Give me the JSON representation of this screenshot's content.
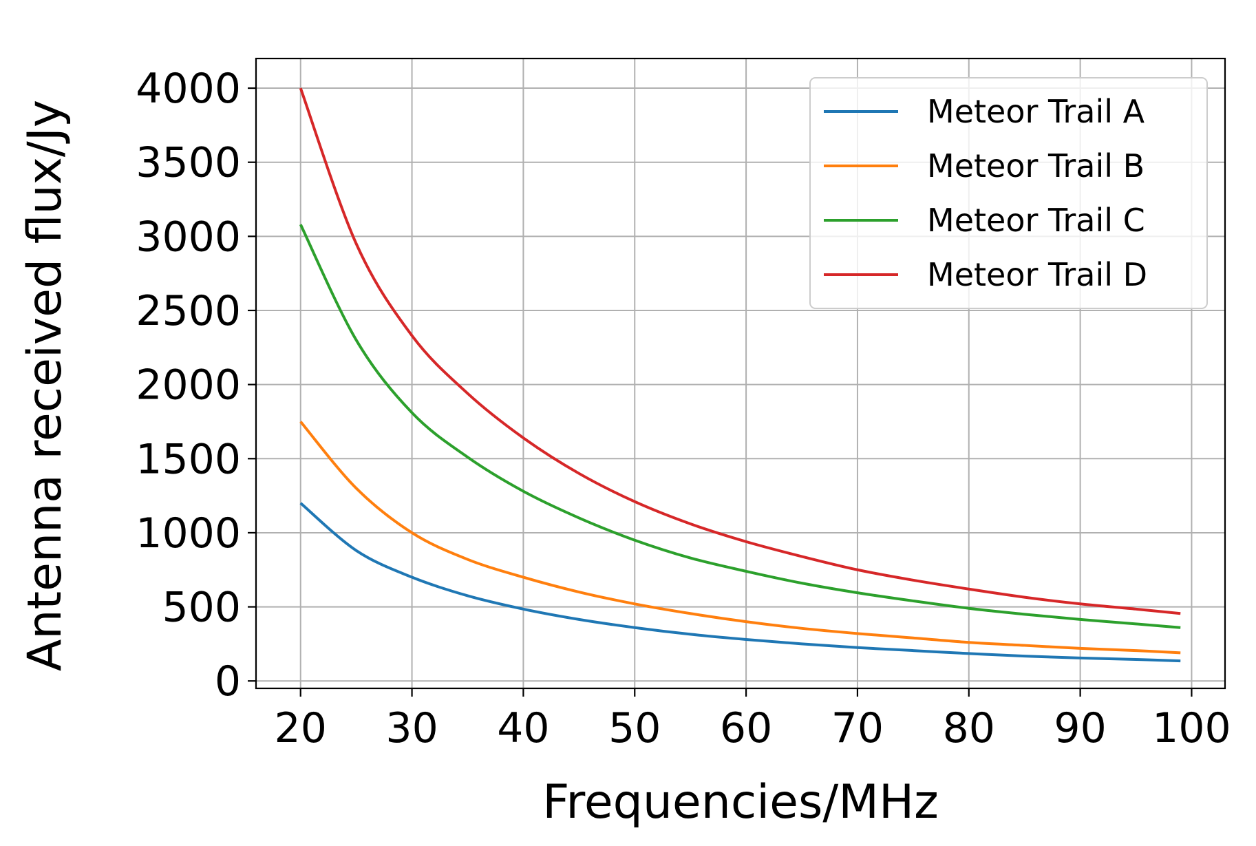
{
  "chart_data": {
    "type": "line",
    "title": "",
    "xlabel": "Frequencies/MHz",
    "ylabel": "Antenna received flux/Jy",
    "xlim": [
      16,
      103
    ],
    "ylim": [
      -50,
      4200
    ],
    "xticks": [
      20,
      30,
      40,
      50,
      60,
      70,
      80,
      90,
      100
    ],
    "yticks": [
      0,
      500,
      1000,
      1500,
      2000,
      2500,
      3000,
      3500,
      4000
    ],
    "xtick_labels": [
      "20",
      "30",
      "40",
      "50",
      "60",
      "70",
      "80",
      "90",
      "100"
    ],
    "ytick_labels": [
      "0",
      "500",
      "1000",
      "1500",
      "2000",
      "2500",
      "3000",
      "3500",
      "4000"
    ],
    "grid": true,
    "legend_position": "upper right",
    "x": [
      20,
      25,
      30,
      35,
      40,
      45,
      50,
      55,
      60,
      65,
      70,
      75,
      80,
      85,
      90,
      95,
      99
    ],
    "series": [
      {
        "name": "Meteor Trail A",
        "color": "#1f77b4",
        "values": [
          1200,
          880,
          700,
          575,
          485,
          415,
          360,
          315,
          280,
          250,
          225,
          205,
          185,
          168,
          155,
          145,
          135
        ]
      },
      {
        "name": "Meteor Trail B",
        "color": "#ff7f0e",
        "values": [
          1750,
          1300,
          1000,
          820,
          700,
          600,
          520,
          455,
          400,
          355,
          320,
          290,
          260,
          240,
          220,
          205,
          190
        ]
      },
      {
        "name": "Meteor Trail C",
        "color": "#2ca02c",
        "values": [
          3080,
          2300,
          1810,
          1510,
          1280,
          1100,
          950,
          830,
          740,
          660,
          595,
          540,
          490,
          450,
          415,
          385,
          360
        ]
      },
      {
        "name": "Meteor Trail D",
        "color": "#d62728",
        "values": [
          4000,
          2950,
          2330,
          1940,
          1640,
          1400,
          1210,
          1060,
          940,
          840,
          750,
          680,
          620,
          565,
          520,
          485,
          455
        ]
      }
    ]
  }
}
